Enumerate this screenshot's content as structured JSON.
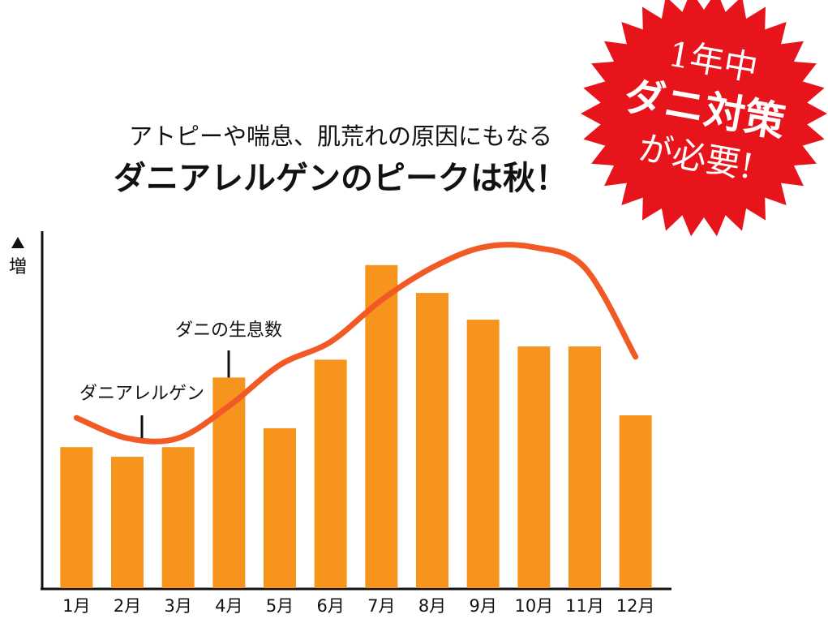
{
  "chart_data": {
    "type": "bar",
    "subtitle": "アトピーや喘息、肌荒れの原因にもなる",
    "title": "ダニアレルゲンのピークは秋！",
    "y_label": "増",
    "categories": [
      "1月",
      "2月",
      "3月",
      "4月",
      "5月",
      "6月",
      "7月",
      "8月",
      "9月",
      "10月",
      "11月",
      "12月"
    ],
    "ylim": [
      0,
      100
    ],
    "series": [
      {
        "name": "ダニの生息数",
        "type": "bar",
        "color": "#f7941d",
        "values": [
          39.5,
          36.8,
          39.5,
          59,
          44.8,
          64,
          90.5,
          82.7,
          75.2,
          67.7,
          67.7,
          48.4
        ]
      },
      {
        "name": "ダニアレルゲン",
        "type": "line",
        "color": "#f15a24",
        "values": [
          47.7,
          42,
          42,
          51,
          62.5,
          69,
          80.7,
          89.8,
          95.5,
          95.5,
          89.8,
          64.8
        ]
      }
    ],
    "badge": {
      "lines": [
        "1年中",
        "ダニ対策",
        "が必要!"
      ],
      "color": "#e8141b"
    }
  }
}
